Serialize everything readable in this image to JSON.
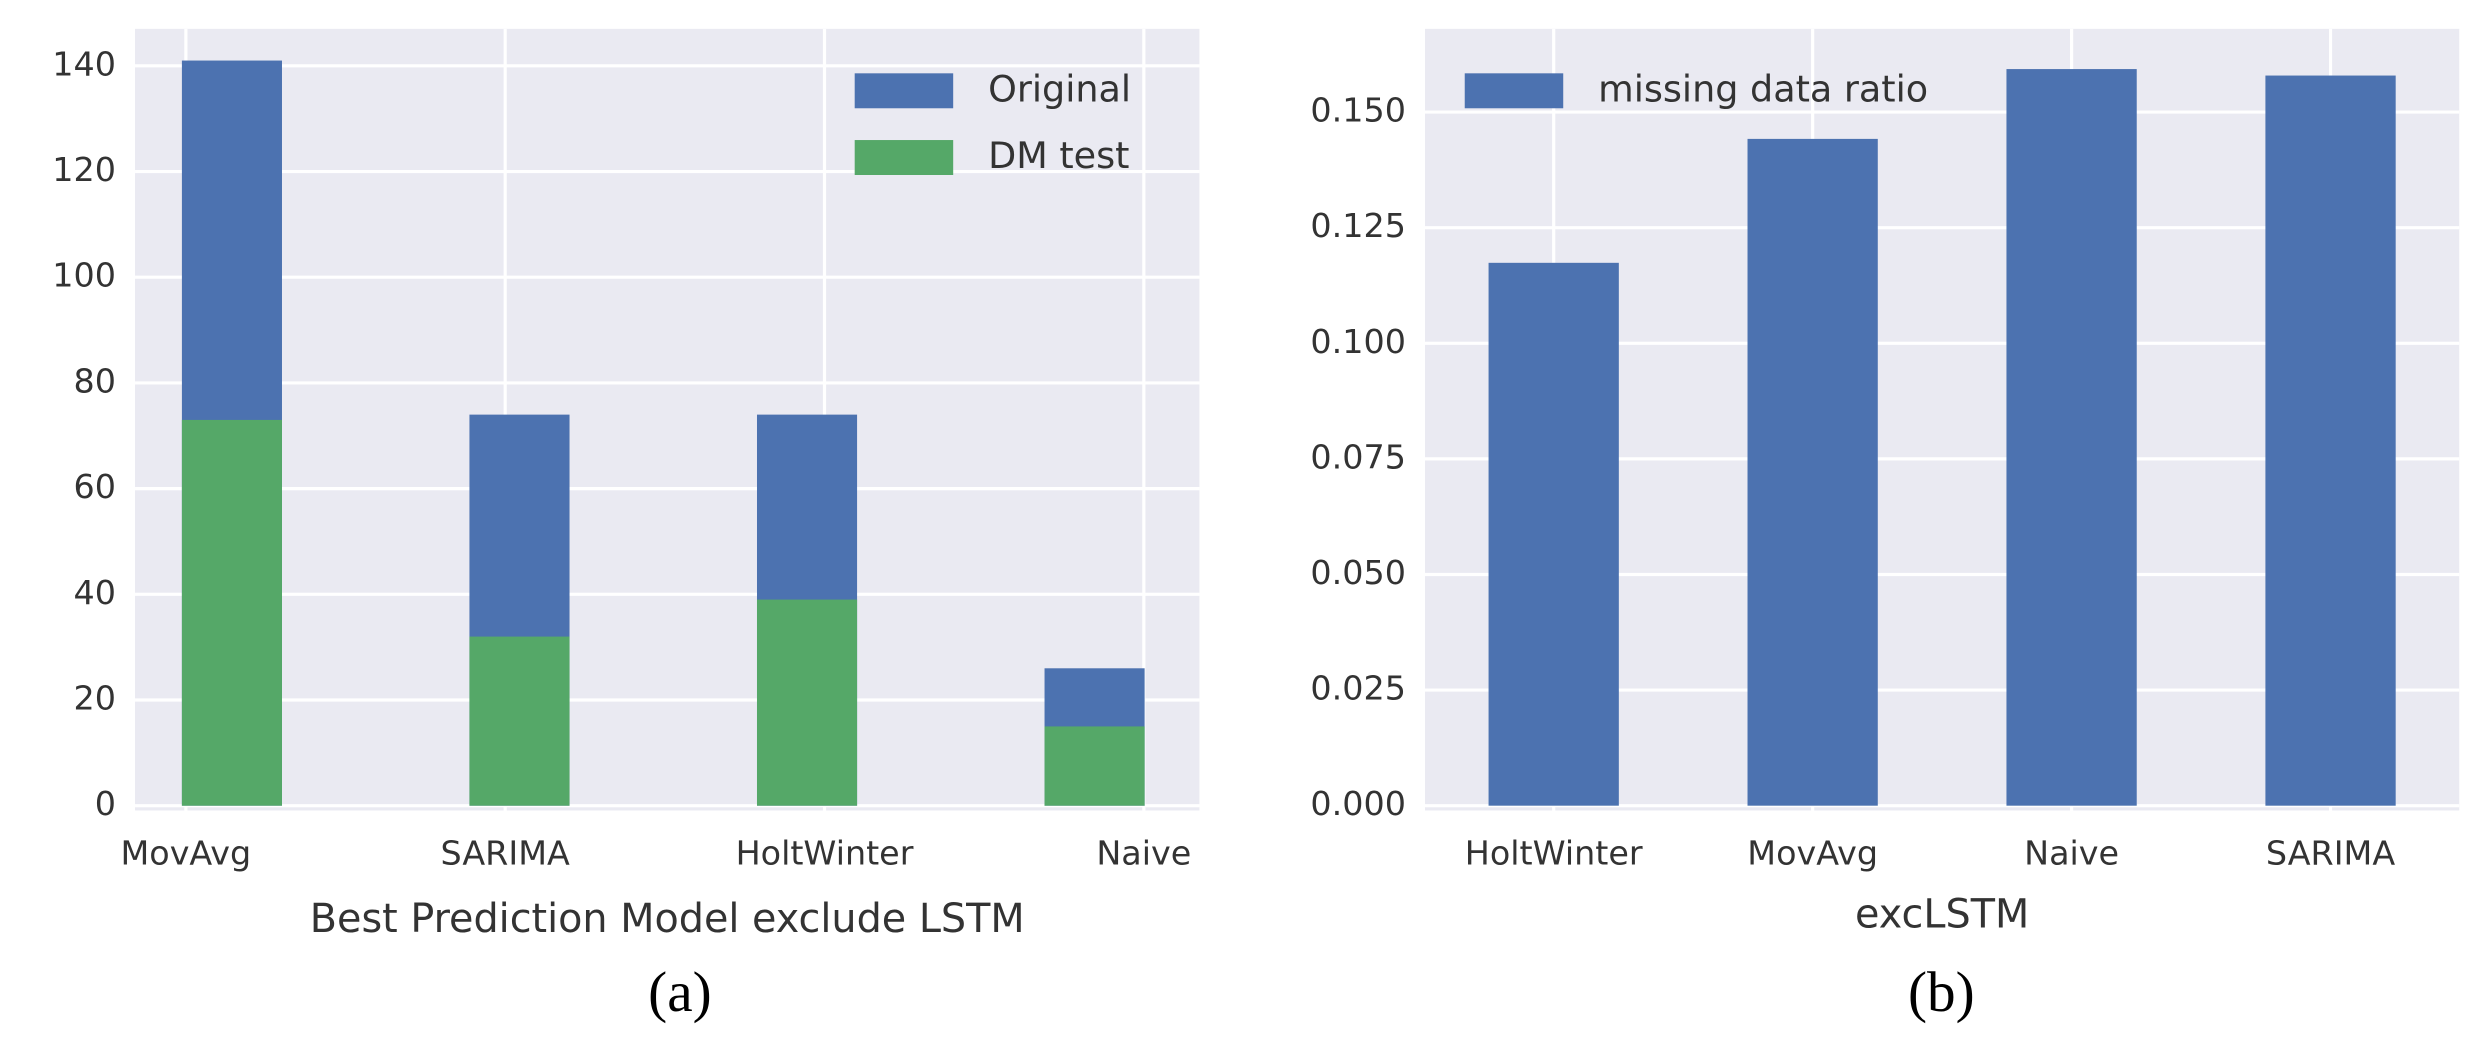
{
  "chart_data": [
    {
      "type": "bar",
      "overlap": true,
      "x_label": "Best Prediction Model exclude LSTM",
      "caption": "(a)",
      "categories": [
        "MovAvg",
        "SARIMA",
        "HoltWinter",
        "Naive"
      ],
      "series": [
        {
          "name": "Original",
          "color": "#4c72b0",
          "values": [
            141,
            74,
            74,
            26
          ]
        },
        {
          "name": "DM test",
          "color": "#55a868",
          "values": [
            73,
            32,
            39,
            15
          ]
        }
      ],
      "ylim": [
        0,
        147
      ],
      "yticks": [
        0,
        20,
        40,
        60,
        80,
        100,
        120,
        140
      ],
      "grid": true,
      "legend": "upper right"
    },
    {
      "type": "bar",
      "x_label": "excLSTM",
      "caption": "(b)",
      "categories": [
        "HoltWinter",
        "MovAvg",
        "Naive",
        "SARIMA"
      ],
      "series": [
        {
          "name": "missing data ratio",
          "color": "#4c72b0",
          "values": [
            0.1174,
            0.1442,
            0.1593,
            0.1579
          ]
        }
      ],
      "ylim": [
        0,
        0.168
      ],
      "yticks": [
        {
          "value": 0,
          "label": "0.000"
        },
        {
          "value": 0.025,
          "label": "0.025"
        },
        {
          "value": 0.05,
          "label": "0.050"
        },
        {
          "value": 0.075,
          "label": "0.075"
        },
        {
          "value": 0.1,
          "label": "0.100"
        },
        {
          "value": 0.125,
          "label": "0.125"
        },
        {
          "value": 0.15,
          "label": "0.150"
        }
      ],
      "grid": true,
      "legend": "upper left"
    }
  ]
}
